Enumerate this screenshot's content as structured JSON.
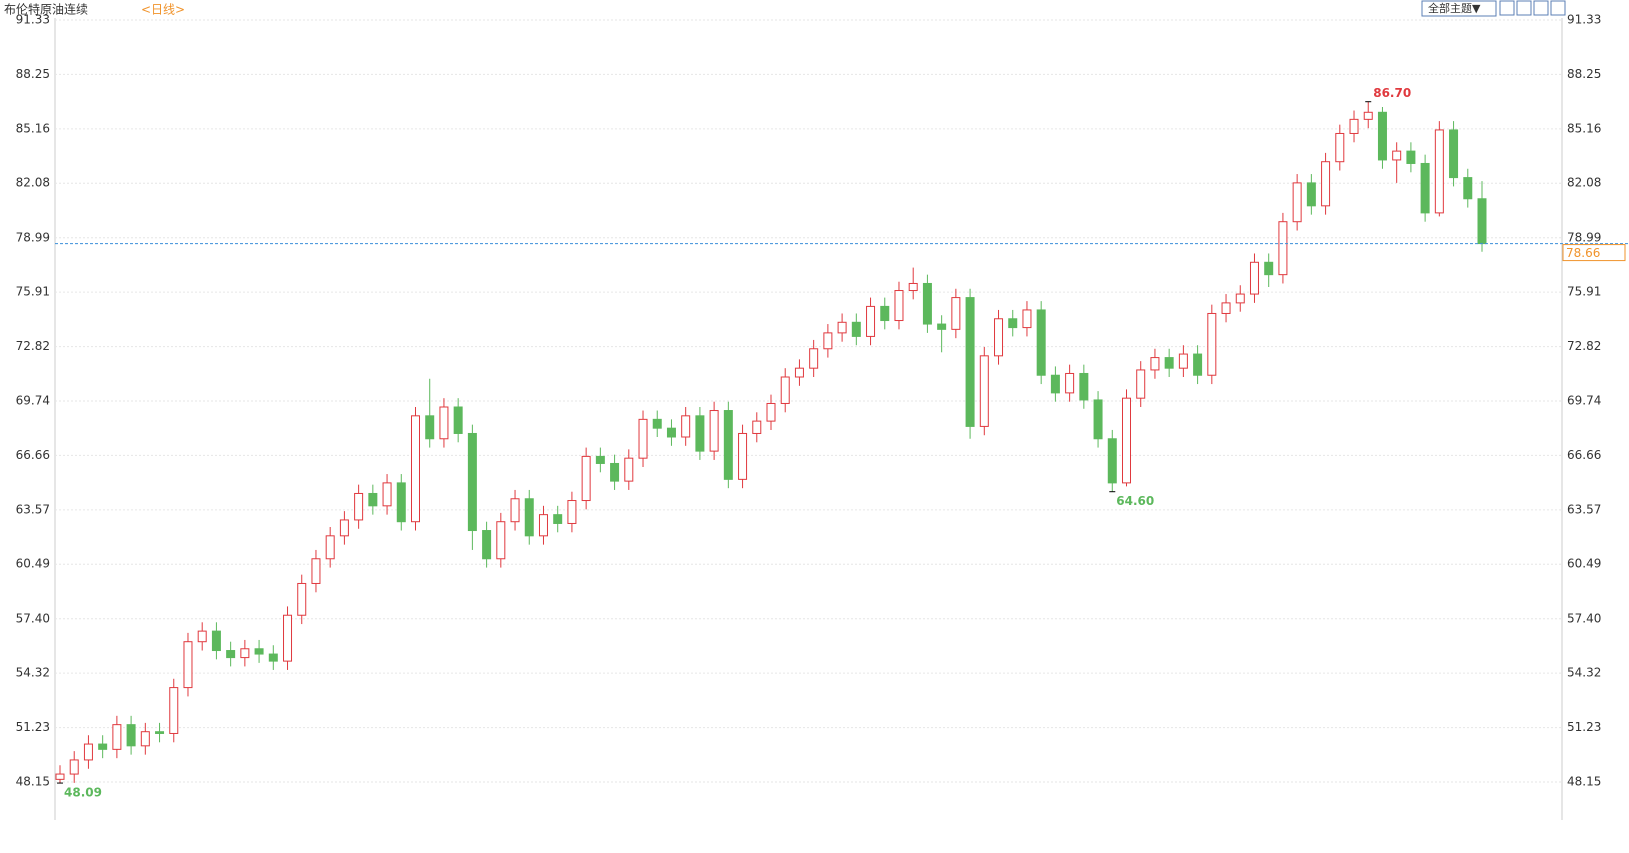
{
  "toolbar": {
    "theme_button": "全部主题▼"
  },
  "chart_data": {
    "type": "candlestick",
    "title": "布伦特原油连续",
    "subtitle": "<日线>",
    "up_color": "#e0393e",
    "down_color": "#5cb85c",
    "grid": true,
    "ylim": [
      46.1,
      91.33
    ],
    "yticks": [
      91.33,
      88.25,
      85.16,
      82.08,
      78.99,
      75.91,
      72.82,
      69.74,
      66.66,
      63.57,
      60.49,
      {
        "value": 57.4,
        "label": "57.40"
      },
      54.32,
      51.23,
      48.15
    ],
    "open": [
      48.3,
      48.6,
      49.4,
      50.3,
      50.0,
      51.4,
      50.2,
      51.0,
      50.9,
      53.5,
      56.1,
      56.7,
      55.6,
      55.2,
      55.7,
      55.4,
      55.0,
      57.6,
      59.4,
      60.8,
      62.1,
      63.0,
      64.5,
      63.8,
      65.1,
      62.9,
      68.9,
      67.6,
      69.4,
      67.9,
      62.4,
      60.8,
      62.9,
      64.2,
      62.1,
      63.3,
      62.8,
      64.1,
      66.6,
      66.2,
      65.2,
      66.5,
      68.7,
      68.2,
      67.7,
      68.9,
      66.9,
      69.2,
      65.3,
      67.9,
      68.6,
      69.6,
      71.1,
      71.6,
      72.7,
      73.6,
      74.2,
      73.4,
      75.1,
      74.3,
      76.0,
      76.4,
      74.1,
      73.8,
      75.6,
      68.3,
      72.3,
      74.4,
      73.9,
      74.9,
      71.2,
      70.2,
      71.3,
      69.8,
      67.6,
      65.1,
      69.9,
      71.5,
      72.2,
      71.6,
      72.4,
      71.2,
      74.7,
      75.3,
      75.8,
      77.6,
      76.9,
      79.9,
      82.1,
      80.8,
      83.3,
      84.9,
      85.7,
      86.1,
      83.4,
      83.9,
      83.2,
      80.4,
      85.1,
      82.4,
      81.2
    ],
    "high": [
      49.1,
      49.9,
      50.8,
      50.8,
      51.9,
      51.9,
      51.5,
      51.5,
      54.0,
      56.6,
      57.2,
      57.2,
      56.1,
      56.2,
      56.2,
      55.9,
      58.1,
      59.9,
      61.3,
      62.6,
      63.5,
      65.0,
      65.0,
      65.6,
      65.6,
      69.4,
      71.0,
      69.9,
      69.9,
      68.4,
      62.9,
      63.4,
      64.7,
      64.7,
      63.8,
      63.8,
      64.6,
      67.1,
      67.1,
      66.7,
      67.0,
      69.2,
      69.2,
      68.7,
      69.4,
      69.4,
      69.7,
      69.7,
      68.4,
      69.1,
      70.1,
      71.6,
      72.1,
      73.2,
      74.1,
      74.7,
      74.7,
      75.6,
      75.6,
      76.5,
      77.3,
      76.9,
      74.6,
      76.1,
      76.1,
      72.8,
      74.9,
      74.9,
      75.4,
      75.4,
      71.7,
      71.8,
      71.8,
      70.3,
      68.1,
      70.4,
      72.0,
      72.7,
      72.7,
      72.9,
      72.9,
      75.2,
      75.8,
      76.3,
      78.1,
      78.1,
      80.4,
      82.6,
      82.6,
      83.8,
      85.4,
      86.2,
      86.7,
      86.4,
      84.4,
      84.4,
      83.7,
      85.6,
      85.6,
      82.9,
      82.2
    ],
    "low": [
      48.09,
      48.1,
      48.9,
      49.5,
      49.5,
      49.7,
      49.7,
      50.4,
      50.4,
      53.0,
      55.6,
      55.1,
      54.7,
      54.7,
      54.9,
      54.5,
      54.5,
      57.1,
      58.9,
      60.3,
      61.6,
      62.5,
      63.3,
      63.3,
      62.4,
      62.4,
      67.1,
      67.1,
      67.4,
      61.3,
      60.3,
      60.3,
      62.4,
      61.6,
      61.6,
      62.3,
      62.3,
      63.6,
      65.7,
      64.7,
      64.7,
      66.0,
      67.7,
      67.2,
      67.2,
      66.4,
      66.4,
      64.8,
      64.8,
      67.4,
      68.1,
      69.1,
      70.6,
      71.1,
      72.2,
      73.1,
      72.9,
      72.9,
      73.8,
      73.8,
      75.5,
      73.6,
      72.5,
      73.3,
      67.6,
      67.8,
      71.8,
      73.4,
      73.4,
      70.7,
      69.7,
      69.7,
      69.3,
      67.1,
      64.6,
      64.9,
      69.4,
      71.0,
      71.1,
      71.1,
      70.7,
      70.7,
      74.2,
      74.8,
      75.3,
      76.2,
      76.4,
      79.4,
      80.3,
      80.3,
      82.8,
      84.4,
      85.2,
      82.9,
      82.1,
      82.7,
      79.9,
      80.2,
      81.9,
      80.7,
      78.2
    ],
    "close": [
      48.6,
      49.4,
      50.3,
      50.0,
      51.4,
      50.2,
      51.0,
      50.9,
      53.5,
      56.1,
      56.7,
      55.6,
      55.2,
      55.7,
      55.4,
      55.0,
      57.6,
      59.4,
      60.8,
      62.1,
      63.0,
      64.5,
      63.8,
      65.1,
      62.9,
      68.9,
      67.6,
      69.4,
      67.9,
      62.4,
      60.8,
      62.9,
      64.2,
      62.1,
      63.3,
      62.8,
      64.1,
      66.6,
      66.2,
      65.2,
      66.5,
      68.7,
      68.2,
      67.7,
      68.9,
      66.9,
      69.2,
      65.3,
      67.9,
      68.6,
      69.6,
      71.1,
      71.6,
      72.7,
      73.6,
      74.2,
      73.4,
      75.1,
      74.3,
      76.0,
      76.4,
      74.1,
      73.8,
      75.6,
      68.3,
      72.3,
      74.4,
      73.9,
      74.9,
      71.2,
      70.2,
      71.3,
      69.8,
      67.6,
      65.1,
      69.9,
      71.5,
      72.2,
      71.6,
      72.4,
      71.2,
      74.7,
      75.3,
      75.8,
      77.6,
      76.9,
      79.9,
      82.1,
      80.8,
      83.3,
      84.9,
      85.7,
      86.1,
      83.4,
      83.9,
      83.2,
      80.4,
      85.1,
      82.4,
      81.2,
      78.66
    ],
    "max_label": {
      "value": 86.7,
      "label": "86.70",
      "color": "#e0393e"
    },
    "min_labels": [
      {
        "value": 64.6,
        "label": "64.60",
        "color": "#5cb85c"
      },
      {
        "value": 48.09,
        "label": "48.09",
        "color": "#5cb85c"
      }
    ],
    "last_price": {
      "value": 78.66,
      "label": "78.66",
      "color": "#f0932b",
      "line_color": "#3a8fd9"
    }
  }
}
